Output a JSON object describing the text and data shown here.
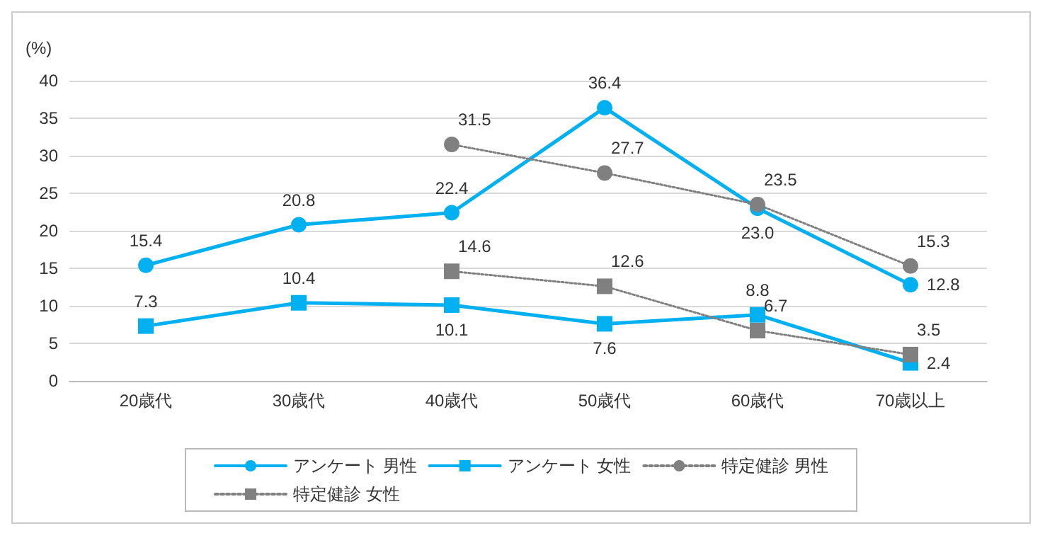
{
  "chart_data": {
    "type": "line",
    "ylabel": "(%)",
    "categories": [
      "20歳代",
      "30歳代",
      "40歳代",
      "50歳代",
      "60歳代",
      "70歳以上"
    ],
    "ylim": [
      0,
      40
    ],
    "yticks": [
      0,
      5,
      10,
      15,
      20,
      25,
      30,
      35,
      40
    ],
    "grid": "y",
    "legend": "bottom",
    "series": [
      {
        "name": "アンケート 男性",
        "color": "#00b0f0",
        "marker": "circle",
        "line_style": "solid",
        "values": [
          15.4,
          20.8,
          22.4,
          36.4,
          23.0,
          12.8
        ],
        "value_labels": [
          "15.4",
          "20.8",
          "22.4",
          "36.4",
          "23.0",
          "12.8"
        ]
      },
      {
        "name": "アンケート 女性",
        "color": "#00b0f0",
        "marker": "square",
        "line_style": "solid",
        "values": [
          7.3,
          10.4,
          10.1,
          7.6,
          8.8,
          2.4
        ],
        "value_labels": [
          "7.3",
          "10.4",
          "10.1",
          "7.6",
          "8.8",
          "2.4"
        ]
      },
      {
        "name": "特定健診 男性",
        "color": "#808080",
        "marker": "circle",
        "line_style": "dotted",
        "values": [
          null,
          null,
          31.5,
          27.7,
          23.5,
          15.3
        ],
        "value_labels": [
          null,
          null,
          "31.5",
          "27.7",
          "23.5",
          "15.3"
        ]
      },
      {
        "name": "特定健診 女性",
        "color": "#808080",
        "marker": "square",
        "line_style": "dotted",
        "values": [
          null,
          null,
          14.6,
          12.6,
          6.7,
          3.5
        ],
        "value_labels": [
          null,
          null,
          "14.6",
          "12.6",
          "6.7",
          "3.5"
        ]
      }
    ]
  }
}
